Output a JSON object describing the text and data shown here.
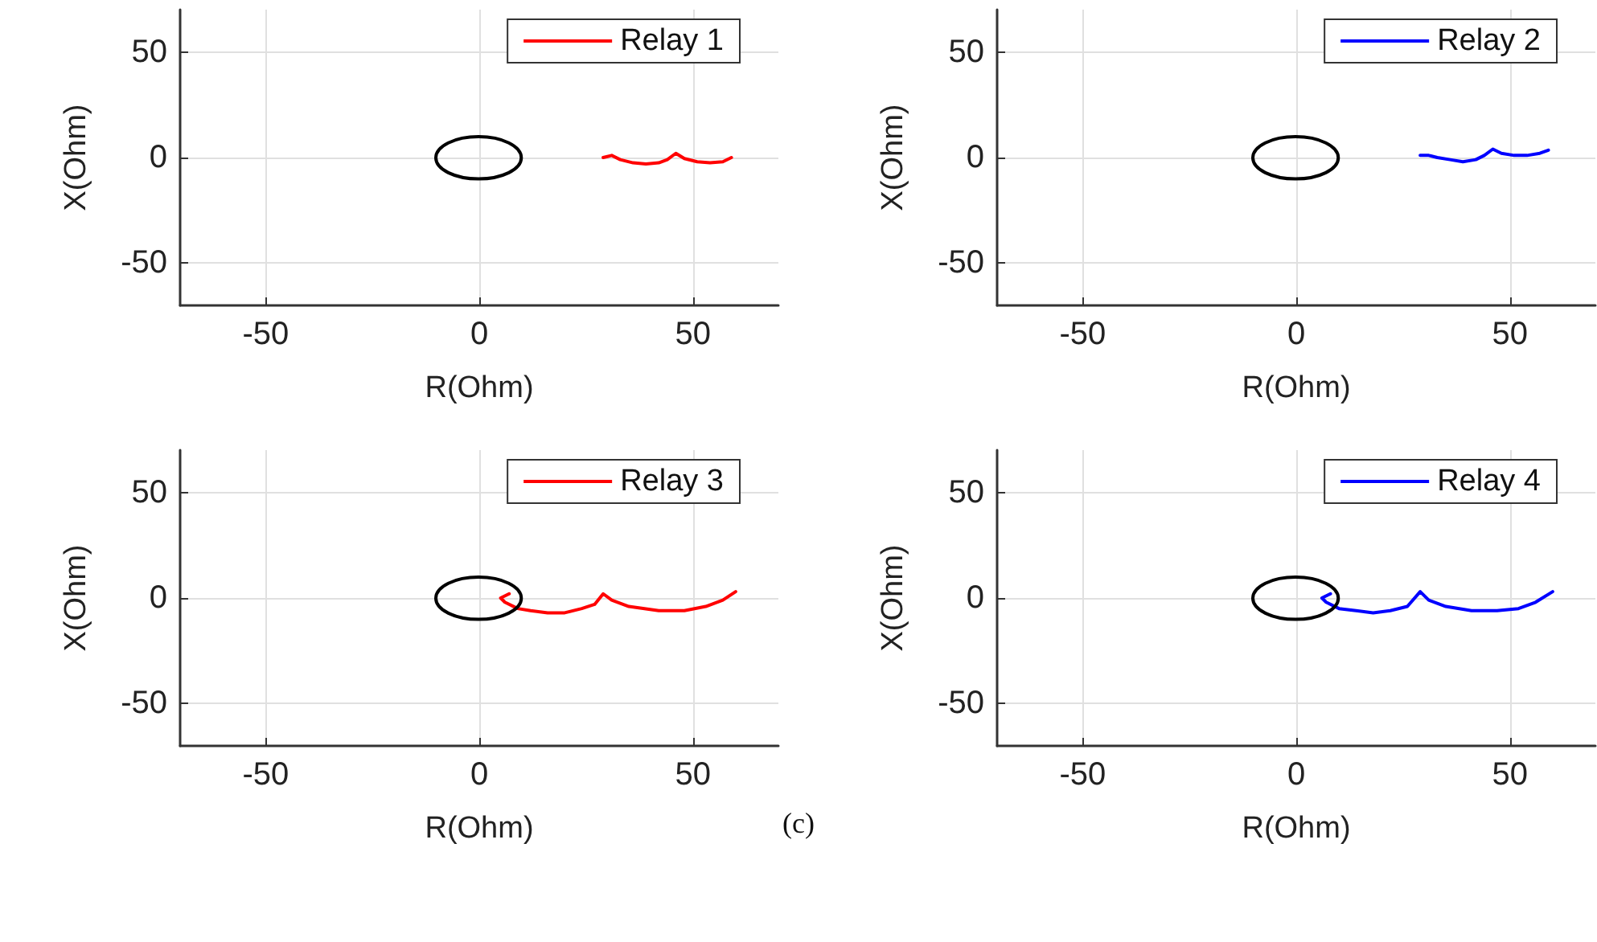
{
  "chart_data": [
    {
      "type": "line",
      "xlabel": "R(Ohm)",
      "ylabel": "X(Ohm)",
      "xlim": [
        -70,
        70
      ],
      "ylim": [
        -70,
        70
      ],
      "xticks": [
        -50,
        0,
        50
      ],
      "yticks": [
        -50,
        0,
        50
      ],
      "grid": true,
      "legend": "top right",
      "series": [
        {
          "name": "Relay 1",
          "color": "#ff0000",
          "x": [
            29,
            30,
            31,
            33,
            36,
            39,
            42,
            44,
            46,
            48,
            51,
            54,
            57,
            59
          ],
          "values": [
            0,
            0.5,
            1,
            -1,
            -2.5,
            -3,
            -2.5,
            -1,
            2,
            -0.5,
            -2,
            -2.5,
            -2,
            0
          ]
        }
      ]
    },
    {
      "type": "line",
      "xlabel": "R(Ohm)",
      "ylabel": "X(Ohm)",
      "xlim": [
        -70,
        70
      ],
      "ylim": [
        -70,
        70
      ],
      "xticks": [
        -50,
        0,
        50
      ],
      "yticks": [
        -50,
        0,
        50
      ],
      "grid": true,
      "legend": "top right",
      "series": [
        {
          "name": "Relay 2",
          "color": "#0000ff",
          "x": [
            29,
            30,
            31,
            33,
            36,
            39,
            42,
            44,
            46,
            48,
            51,
            54,
            57,
            59
          ],
          "values": [
            1,
            1,
            1,
            0,
            -1,
            -2,
            -1,
            1,
            4,
            2,
            1,
            1,
            2,
            3.5
          ]
        }
      ]
    },
    {
      "type": "line",
      "xlabel": "R(Ohm)",
      "ylabel": "X(Ohm)",
      "xlim": [
        -70,
        70
      ],
      "ylim": [
        -70,
        70
      ],
      "xticks": [
        -50,
        0,
        50
      ],
      "yticks": [
        -50,
        0,
        50
      ],
      "grid": true,
      "legend": "top right",
      "series": [
        {
          "name": "Relay 3",
          "color": "#ff0000",
          "x": [
            7,
            5,
            6,
            9,
            12,
            16,
            20,
            24,
            27,
            29,
            31,
            35,
            42,
            48,
            53,
            57,
            60
          ],
          "values": [
            2,
            0,
            -2,
            -5,
            -6,
            -7,
            -7,
            -5,
            -3,
            2,
            -1,
            -4,
            -6,
            -6,
            -4,
            -1,
            3
          ]
        }
      ]
    },
    {
      "type": "line",
      "xlabel": "R(Ohm)",
      "ylabel": "X(Ohm)",
      "xlim": [
        -70,
        70
      ],
      "ylim": [
        -70,
        70
      ],
      "xticks": [
        -50,
        0,
        50
      ],
      "yticks": [
        -50,
        0,
        50
      ],
      "grid": true,
      "legend": "top right",
      "annotations": [
        "(c)"
      ],
      "series": [
        {
          "name": "Relay 4",
          "color": "#0000ff",
          "x": [
            8,
            6,
            7,
            10,
            14,
            18,
            22,
            26,
            29,
            31,
            35,
            41,
            47,
            52,
            56,
            60
          ],
          "values": [
            2,
            0,
            -2,
            -5,
            -6,
            -7,
            -6,
            -4,
            3,
            -1,
            -4,
            -6,
            -6,
            -5,
            -2,
            3
          ]
        }
      ]
    }
  ]
}
